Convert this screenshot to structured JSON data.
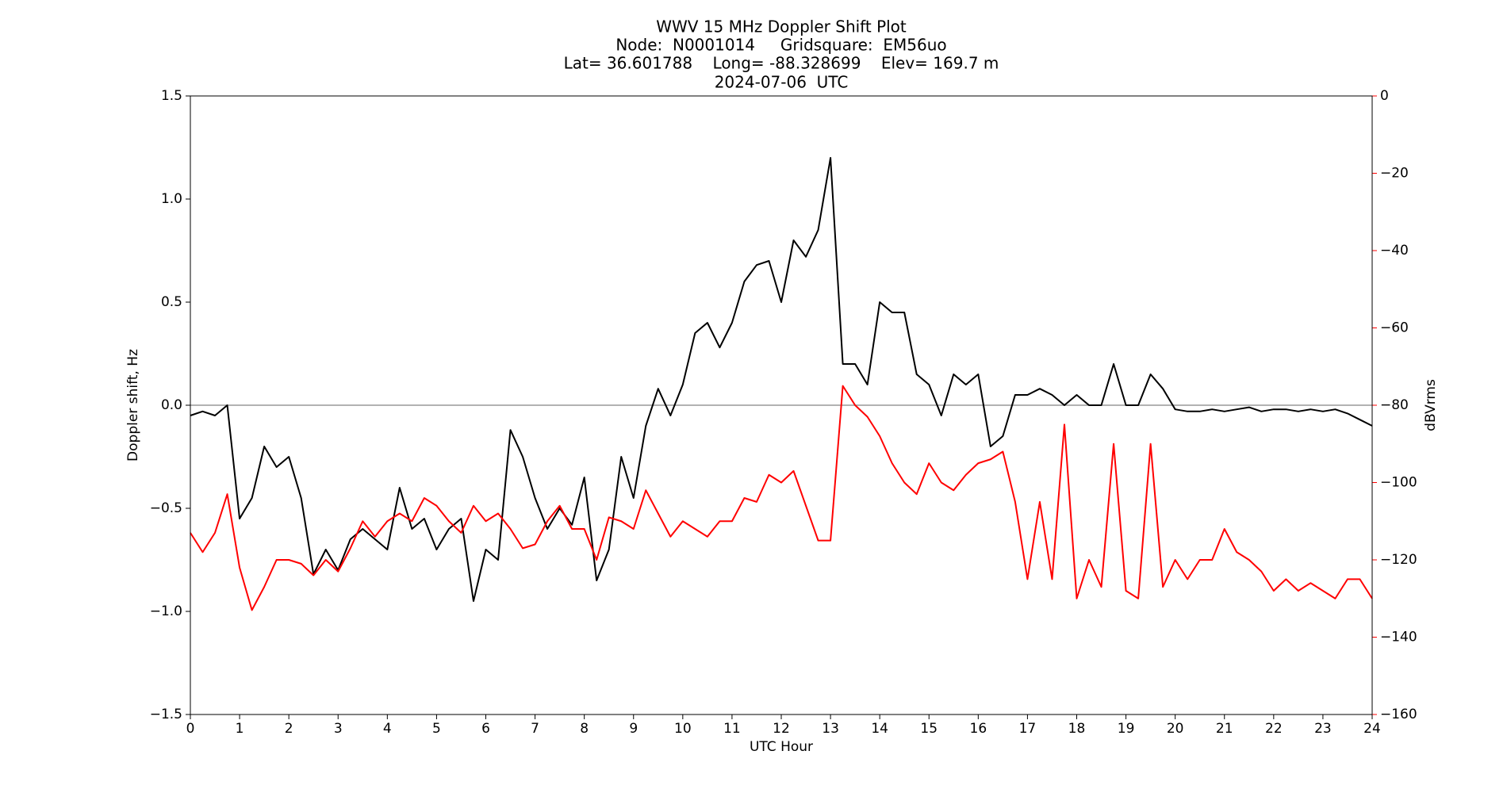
{
  "chart_data": {
    "type": "line",
    "title": [
      "WWV 15 MHz Doppler Shift Plot",
      "Node:  N0001014     Gridsquare:  EM56uo",
      "Lat= 36.601788    Long= -88.328699    Elev= 169.7 m",
      "2024-07-06  UTC"
    ],
    "x_label": "UTC Hour",
    "y_label": "Doppler shift, Hz",
    "y2_label": "dBVrms",
    "x": [
      0,
      0.25,
      0.5,
      0.75,
      1,
      1.25,
      1.5,
      1.75,
      2,
      2.25,
      2.5,
      2.75,
      3,
      3.25,
      3.5,
      3.75,
      4,
      4.25,
      4.5,
      4.75,
      5,
      5.25,
      5.5,
      5.75,
      6,
      6.25,
      6.5,
      6.75,
      7,
      7.25,
      7.5,
      7.75,
      8,
      8.25,
      8.5,
      8.75,
      9,
      9.25,
      9.5,
      9.75,
      10,
      10.25,
      10.5,
      10.75,
      11,
      11.25,
      11.5,
      11.75,
      12,
      12.25,
      12.5,
      12.75,
      13,
      13.25,
      13.5,
      13.75,
      14,
      14.25,
      14.5,
      14.75,
      15,
      15.25,
      15.5,
      15.75,
      16,
      16.25,
      16.5,
      16.75,
      17,
      17.25,
      17.5,
      17.75,
      18,
      18.25,
      18.5,
      18.75,
      19,
      19.25,
      19.5,
      19.75,
      20,
      20.25,
      20.5,
      20.75,
      21,
      21.25,
      21.5,
      21.75,
      22,
      22.25,
      22.5,
      22.75,
      23,
      23.25,
      23.5,
      23.75,
      24
    ],
    "series": [
      {
        "name": "Doppler shift",
        "color": "#000000",
        "values": [
          -0.05,
          -0.03,
          -0.05,
          0.0,
          -0.55,
          -0.45,
          -0.2,
          -0.3,
          -0.25,
          -0.45,
          -0.82,
          -0.7,
          -0.8,
          -0.65,
          -0.6,
          -0.65,
          -0.7,
          -0.4,
          -0.6,
          -0.55,
          -0.7,
          -0.6,
          -0.55,
          -0.95,
          -0.7,
          -0.75,
          -0.12,
          -0.25,
          -0.45,
          -0.6,
          -0.5,
          -0.58,
          -0.35,
          -0.85,
          -0.7,
          -0.25,
          -0.45,
          -0.1,
          0.08,
          -0.05,
          0.1,
          0.35,
          0.4,
          0.28,
          0.4,
          0.6,
          0.68,
          0.7,
          0.5,
          0.8,
          0.72,
          0.85,
          1.2,
          0.2,
          0.2,
          0.1,
          0.5,
          0.45,
          0.45,
          0.15,
          0.1,
          -0.05,
          0.15,
          0.1,
          0.15,
          -0.2,
          -0.15,
          0.05,
          0.05,
          0.08,
          0.05,
          0.0,
          0.05,
          0.0,
          0.0,
          0.2,
          0.0,
          0.0,
          0.15,
          0.08,
          -0.02,
          -0.03,
          -0.03,
          -0.02,
          -0.03,
          -0.02,
          -0.01,
          -0.03,
          -0.02,
          -0.02,
          -0.03,
          -0.02,
          -0.03,
          -0.02,
          -0.04,
          -0.07,
          -0.1
        ]
      },
      {
        "name": "dBVrms",
        "color": "#ff0000",
        "axis": "y2",
        "values": [
          -113,
          -118,
          -113,
          -103,
          -122,
          -133,
          -127,
          -120,
          -120,
          -121,
          -124,
          -120,
          -123,
          -117,
          -110,
          -114,
          -110,
          -108,
          -110,
          -104,
          -106,
          -110,
          -113,
          -106,
          -110,
          -108,
          -112,
          -117,
          -116,
          -110,
          -106,
          -112,
          -112,
          -120,
          -109,
          -110,
          -112,
          -102,
          -108,
          -114,
          -110,
          -112,
          -114,
          -110,
          -110,
          -104,
          -105,
          -98,
          -100,
          -97,
          -106,
          -115,
          -115,
          -75,
          -80,
          -83,
          -88,
          -95,
          -100,
          -103,
          -95,
          -100,
          -102,
          -98,
          -95,
          -94,
          -92,
          -105,
          -125,
          -105,
          -125,
          -85,
          -130,
          -120,
          -127,
          -90,
          -128,
          -130,
          -90,
          -127,
          -120,
          -125,
          -120,
          -120,
          -112,
          -118,
          -120,
          -123,
          -128,
          -125,
          -128,
          -126,
          -128,
          -130,
          -125,
          -125,
          -130
        ]
      }
    ],
    "reference_line": 0,
    "xlim": [
      0,
      24
    ],
    "xticks": [
      0,
      1,
      2,
      3,
      4,
      5,
      6,
      7,
      8,
      9,
      10,
      11,
      12,
      13,
      14,
      15,
      16,
      17,
      18,
      19,
      20,
      21,
      22,
      23,
      24
    ],
    "ylim": [
      -1.5,
      1.5
    ],
    "yticks": [
      {
        "value": -1.5,
        "label": "−1.5"
      },
      {
        "value": -1.0,
        "label": "−1.0"
      },
      {
        "value": -0.5,
        "label": "−0.5"
      },
      {
        "value": 0,
        "label": "0.0"
      },
      {
        "value": 0.5,
        "label": "0.5"
      },
      {
        "value": 1.0,
        "label": "1.0"
      },
      {
        "value": 1.5,
        "label": "1.5"
      }
    ],
    "y2lim": [
      -160,
      0
    ],
    "y2ticks": [
      {
        "value": -160,
        "label": "−160"
      },
      {
        "value": -140,
        "label": "−140"
      },
      {
        "value": -120,
        "label": "−120"
      },
      {
        "value": -100,
        "label": "−100"
      },
      {
        "value": -80,
        "label": "−80"
      },
      {
        "value": -60,
        "label": "−60"
      },
      {
        "value": -40,
        "label": "−40"
      },
      {
        "value": -20,
        "label": "−20"
      },
      0
    ],
    "y2_color": "#ff0000",
    "reference_color": "#999999"
  }
}
